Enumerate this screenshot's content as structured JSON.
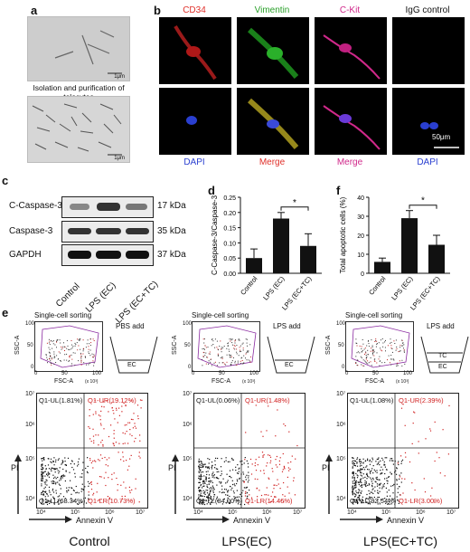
{
  "panels": {
    "a": "a",
    "b": "b",
    "c": "c",
    "d": "d",
    "e": "e",
    "f": "f"
  },
  "panel_a": {
    "caption": "Isolation and purification of telocytes",
    "scale_top": "1μm",
    "scale_bottom": "1μm"
  },
  "panel_b": {
    "top_labels": [
      "CD34",
      "Vimentin",
      "C-Kit",
      "IgG control"
    ],
    "top_colors": [
      "#e0302a",
      "#2aa02a",
      "#d0288a",
      "#111111"
    ],
    "bottom_labels": [
      "DAPI",
      "Merge",
      "Merge",
      "DAPI"
    ],
    "bottom_colors": [
      "#2a3fd0",
      "#e0302a",
      "#d0288a",
      "#2a3fd0"
    ],
    "scale": "50μm"
  },
  "panel_c": {
    "rows": [
      {
        "name": "C-Caspase-3",
        "kda": "17 kDa"
      },
      {
        "name": "Caspase-3",
        "kda": "35 kDa"
      },
      {
        "name": "GAPDH",
        "kda": "37 kDa"
      }
    ],
    "lanes": [
      "Control",
      "LPS (EC)",
      "LPS (EC+TC)"
    ]
  },
  "chart_data": [
    {
      "type": "bar",
      "categories": [
        "Control",
        "LPS (EC)",
        "LPS (EC+TC)"
      ],
      "values": [
        0.05,
        0.18,
        0.09
      ],
      "errors": [
        0.03,
        0.02,
        0.04
      ],
      "ylabel": "C-Caspase-3/Caspase-3",
      "ylim": [
        0,
        0.25
      ],
      "yticks": [
        "0.00",
        "0.05",
        "0.10",
        "0.15",
        "0.20",
        "0.25"
      ],
      "significance": "*"
    },
    {
      "type": "bar",
      "categories": [
        "Control",
        "LPS (EC)",
        "LPS (EC+TC)"
      ],
      "values": [
        6,
        29,
        15
      ],
      "errors": [
        2,
        4,
        5
      ],
      "ylabel": "Total apoptotic cells (%)",
      "ylim": [
        0,
        40
      ],
      "yticks": [
        "0",
        "10",
        "20",
        "30",
        "40"
      ],
      "significance": "*"
    }
  ],
  "panel_e": {
    "groups": [
      {
        "title": "Control",
        "sort_title": "Single-cell sorting",
        "schematic_top": "PBS add",
        "schematic_layers": [
          "EC"
        ],
        "ul": "Q1-UL(1.81%)",
        "ur": "Q1-UR(19.12%)",
        "ll": "Q1-LL(68.34%)",
        "lr": "Q1-LR(10.73%)"
      },
      {
        "title": "LPS(EC)",
        "sort_title": "Single-cell sorting",
        "schematic_top": "LPS add",
        "schematic_layers": [
          "EC"
        ],
        "ul": "Q1-UL(0.06%)",
        "ur": "Q1-UR(1.48%)",
        "ll": "Q1-LL(84.00%)",
        "lr": "Q1-LR(14.46%)"
      },
      {
        "title": "LPS(EC+TC)",
        "sort_title": "Single-cell sorting",
        "schematic_top": "LPS add",
        "schematic_layers": [
          "TC",
          "EC"
        ],
        "ul": "Q1-UL(1.08%)",
        "ur": "Q1-UR(2.39%)",
        "ll": "Q1-LL(93.54%)",
        "lr": "Q1-LR(3.00%)"
      }
    ],
    "sort_xlabel": "FSC-A",
    "sort_ylabel": "SSC-A",
    "sort_ticks_y": [
      "100",
      "50",
      "0"
    ],
    "sort_ticks_x": [
      "0",
      "50",
      "100"
    ],
    "sort_exp": "(x 10³)",
    "flow_xlabel": "Annexin V",
    "flow_ylabel": "PI",
    "flow_ticks": [
      "10⁴",
      "10⁵",
      "10⁶",
      "10⁷"
    ]
  }
}
